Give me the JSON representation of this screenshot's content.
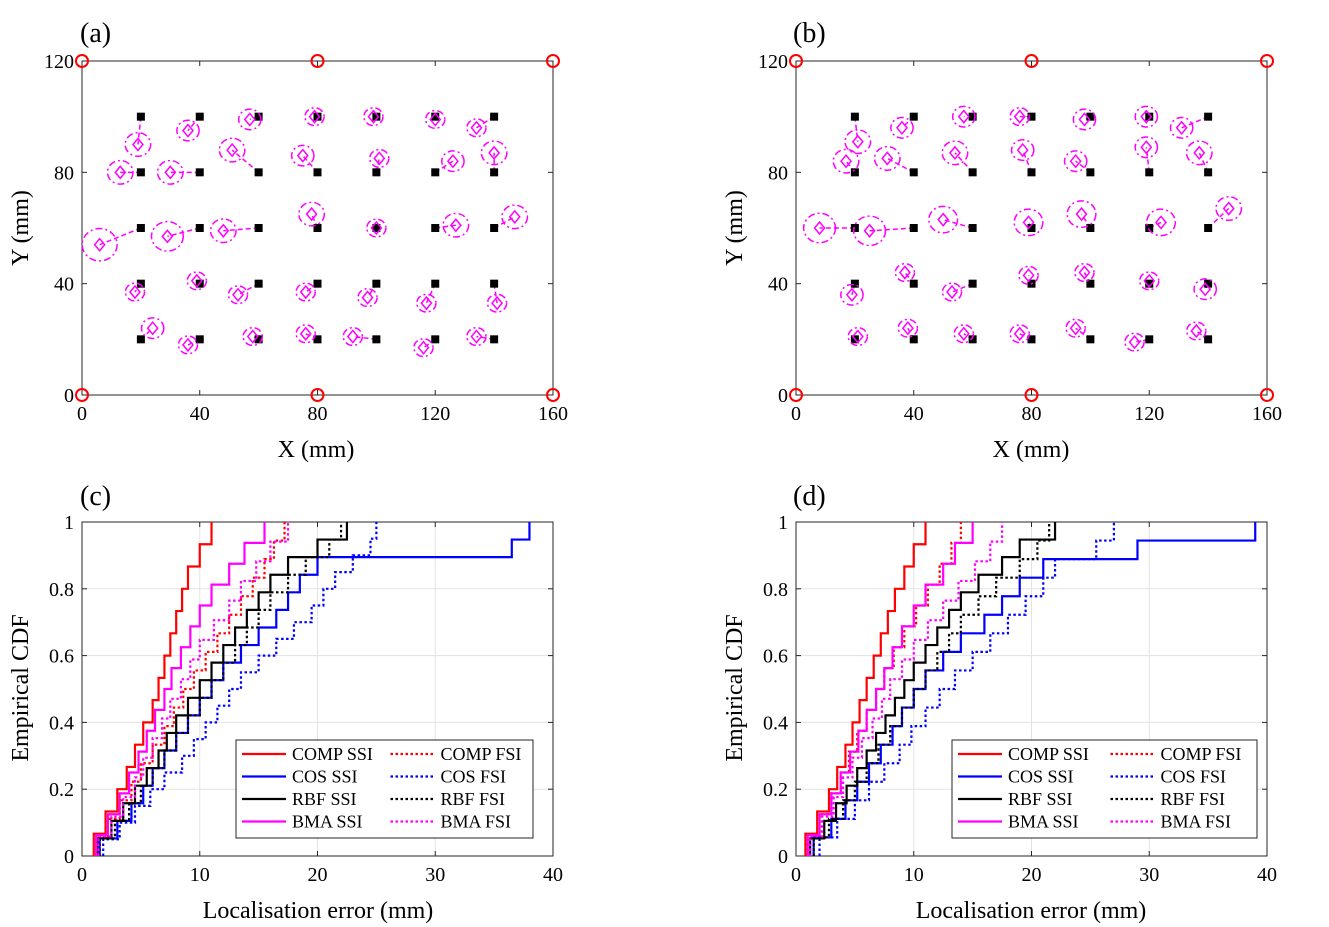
{
  "colors": {
    "COMP": "#ff0000",
    "COS": "#0000ff",
    "RBF": "#000000",
    "BMA": "#ff00ff",
    "anchor": "#ff0000",
    "estimate": "#ff00ff",
    "truth": "#000000",
    "grid": "#e3e3e3"
  },
  "chart_data": [
    {
      "id": "a",
      "type": "scatter",
      "panel_label": "(a)",
      "xlabel": "X (mm)",
      "ylabel": "Y (mm)",
      "xlim": [
        0,
        160
      ],
      "ylim": [
        0,
        120
      ],
      "xticks": [
        0,
        40,
        80,
        120,
        160
      ],
      "yticks": [
        0,
        40,
        80,
        120
      ],
      "grid": false,
      "anchors": [
        [
          0,
          0
        ],
        [
          80,
          0
        ],
        [
          160,
          0
        ],
        [
          0,
          120
        ],
        [
          80,
          120
        ],
        [
          160,
          120
        ]
      ],
      "true_points": [
        [
          20,
          20
        ],
        [
          40,
          20
        ],
        [
          60,
          20
        ],
        [
          80,
          20
        ],
        [
          100,
          20
        ],
        [
          120,
          20
        ],
        [
          140,
          20
        ],
        [
          20,
          40
        ],
        [
          40,
          40
        ],
        [
          60,
          40
        ],
        [
          80,
          40
        ],
        [
          100,
          40
        ],
        [
          120,
          40
        ],
        [
          140,
          40
        ],
        [
          20,
          60
        ],
        [
          40,
          60
        ],
        [
          60,
          60
        ],
        [
          80,
          60
        ],
        [
          100,
          60
        ],
        [
          120,
          60
        ],
        [
          140,
          60
        ],
        [
          20,
          80
        ],
        [
          40,
          80
        ],
        [
          60,
          80
        ],
        [
          80,
          80
        ],
        [
          100,
          80
        ],
        [
          120,
          80
        ],
        [
          140,
          80
        ],
        [
          20,
          100
        ],
        [
          40,
          100
        ],
        [
          60,
          100
        ],
        [
          80,
          100
        ],
        [
          100,
          100
        ],
        [
          120,
          100
        ],
        [
          140,
          100
        ]
      ],
      "estimates": [
        [
          24,
          24
        ],
        [
          36,
          18
        ],
        [
          58,
          21
        ],
        [
          76,
          22
        ],
        [
          92,
          21
        ],
        [
          116,
          17
        ],
        [
          134,
          21
        ],
        [
          18,
          37
        ],
        [
          39,
          41
        ],
        [
          53,
          36
        ],
        [
          76,
          37
        ],
        [
          97,
          35
        ],
        [
          117,
          33
        ],
        [
          141,
          33
        ],
        [
          6,
          54
        ],
        [
          29,
          57
        ],
        [
          48,
          59
        ],
        [
          78,
          65
        ],
        [
          100,
          60
        ],
        [
          127,
          61
        ],
        [
          147,
          64
        ],
        [
          13,
          80
        ],
        [
          30,
          80
        ],
        [
          51,
          88
        ],
        [
          75,
          86
        ],
        [
          101,
          85
        ],
        [
          126,
          84
        ],
        [
          140,
          87
        ],
        [
          19,
          90
        ],
        [
          36,
          95
        ],
        [
          57,
          99
        ],
        [
          79,
          100
        ],
        [
          99,
          100
        ],
        [
          120,
          99
        ],
        [
          134,
          96
        ]
      ],
      "uncertainty_radii": [
        3.5,
        3,
        3,
        3,
        3,
        3,
        3,
        3,
        3,
        3,
        3,
        3,
        3,
        3,
        5.5,
        5,
        4,
        4,
        3,
        4,
        4,
        4,
        4,
        4,
        3.5,
        3,
        3.5,
        4,
        4,
        3.5,
        3.5,
        3,
        3,
        3,
        3
      ]
    },
    {
      "id": "b",
      "type": "scatter",
      "panel_label": "(b)",
      "xlabel": "X (mm)",
      "ylabel": "Y (mm)",
      "xlim": [
        0,
        160
      ],
      "ylim": [
        0,
        120
      ],
      "xticks": [
        0,
        40,
        80,
        120,
        160
      ],
      "yticks": [
        0,
        40,
        80,
        120
      ],
      "grid": false,
      "anchors": [
        [
          0,
          0
        ],
        [
          80,
          0
        ],
        [
          160,
          0
        ],
        [
          0,
          120
        ],
        [
          80,
          120
        ],
        [
          160,
          120
        ]
      ],
      "true_points": [
        [
          20,
          20
        ],
        [
          40,
          20
        ],
        [
          60,
          20
        ],
        [
          80,
          20
        ],
        [
          100,
          20
        ],
        [
          120,
          20
        ],
        [
          140,
          20
        ],
        [
          20,
          40
        ],
        [
          40,
          40
        ],
        [
          60,
          40
        ],
        [
          80,
          40
        ],
        [
          100,
          40
        ],
        [
          120,
          40
        ],
        [
          140,
          40
        ],
        [
          20,
          60
        ],
        [
          40,
          60
        ],
        [
          60,
          60
        ],
        [
          80,
          60
        ],
        [
          100,
          60
        ],
        [
          120,
          60
        ],
        [
          140,
          60
        ],
        [
          20,
          80
        ],
        [
          40,
          80
        ],
        [
          60,
          80
        ],
        [
          80,
          80
        ],
        [
          100,
          80
        ],
        [
          120,
          80
        ],
        [
          140,
          80
        ],
        [
          20,
          100
        ],
        [
          40,
          100
        ],
        [
          60,
          100
        ],
        [
          80,
          100
        ],
        [
          100,
          100
        ],
        [
          120,
          100
        ],
        [
          140,
          100
        ]
      ],
      "estimates": [
        [
          21,
          21
        ],
        [
          38,
          24
        ],
        [
          57,
          22
        ],
        [
          76,
          22
        ],
        [
          95,
          24
        ],
        [
          115,
          19
        ],
        [
          136,
          23
        ],
        [
          19,
          36
        ],
        [
          37,
          44
        ],
        [
          53,
          37
        ],
        [
          79,
          43
        ],
        [
          98,
          44
        ],
        [
          120,
          41
        ],
        [
          139,
          38
        ],
        [
          8,
          60
        ],
        [
          25,
          59
        ],
        [
          50,
          63
        ],
        [
          79,
          62
        ],
        [
          97,
          65
        ],
        [
          124,
          62
        ],
        [
          147,
          67
        ],
        [
          17,
          84
        ],
        [
          31,
          85
        ],
        [
          54,
          87
        ],
        [
          77,
          88
        ],
        [
          95,
          84
        ],
        [
          119,
          89
        ],
        [
          137,
          87
        ],
        [
          21,
          91
        ],
        [
          36,
          96
        ],
        [
          57,
          100
        ],
        [
          76,
          100
        ],
        [
          98,
          99
        ],
        [
          119,
          100
        ],
        [
          131,
          96
        ]
      ],
      "uncertainty_radii": [
        3,
        3,
        3,
        3,
        3,
        3,
        3,
        3.5,
        3,
        3,
        3,
        3,
        3,
        3.5,
        5,
        5,
        4.5,
        4.5,
        4.5,
        4.5,
        4,
        4,
        4,
        4,
        3.5,
        3.5,
        3.5,
        4,
        4,
        3.5,
        3.5,
        3,
        3.5,
        3.5,
        3.5
      ]
    },
    {
      "id": "c",
      "type": "line",
      "panel_label": "(c)",
      "xlabel": "Localisation error (mm)",
      "ylabel": "Empirical CDF",
      "xlim": [
        0,
        40
      ],
      "ylim": [
        0,
        1
      ],
      "xticks": [
        0,
        10,
        20,
        30,
        40
      ],
      "yticks": [
        0,
        0.2,
        0.4,
        0.6,
        0.8,
        1
      ],
      "grid": true,
      "legend_location": "bottom-right",
      "series": [
        {
          "name": "COMP SSI",
          "method": "COMP",
          "style": "solid",
          "x": [
            1.0,
            2.0,
            3.0,
            3.8,
            4.5,
            5.2,
            6.0,
            6.5,
            7.0,
            7.5,
            8.0,
            8.5,
            9.0,
            10.0,
            11.0
          ]
        },
        {
          "name": "COMP FSI",
          "method": "COMP",
          "style": "dotted",
          "x": [
            1.2,
            2.2,
            3.2,
            4.2,
            5.0,
            6.0,
            7.0,
            7.8,
            8.6,
            9.5,
            10.5,
            11.5,
            12.5,
            13.5,
            14.5,
            15.5,
            16.3,
            17.2
          ]
        },
        {
          "name": "COS SSI",
          "method": "COS",
          "style": "solid",
          "x": [
            1.5,
            3.0,
            4.2,
            5.2,
            6.0,
            7.0,
            8.0,
            9.0,
            10.0,
            11.0,
            12.0,
            13.5,
            15.0,
            16.5,
            17.5,
            18.5,
            20.0,
            36.5,
            38.0
          ]
        },
        {
          "name": "COS FSI",
          "method": "COS",
          "style": "dotted",
          "x": [
            1.8,
            3.2,
            4.5,
            5.8,
            7.0,
            8.5,
            9.5,
            10.5,
            11.5,
            12.5,
            13.5,
            15.0,
            16.5,
            18.0,
            19.5,
            20.5,
            21.5,
            23.0,
            24.5,
            25.0
          ]
        },
        {
          "name": "RBF SSI",
          "method": "RBF",
          "style": "solid",
          "x": [
            1.3,
            2.5,
            3.5,
            4.5,
            5.5,
            6.5,
            7.2,
            8.0,
            9.0,
            10.0,
            11.0,
            12.0,
            13.0,
            14.0,
            15.0,
            16.0,
            17.5,
            20.0,
            22.5
          ]
        },
        {
          "name": "RBF FSI",
          "method": "RBF",
          "style": "dotted",
          "x": [
            1.5,
            2.8,
            4.0,
            5.0,
            6.0,
            7.0,
            8.0,
            9.0,
            10.0,
            11.0,
            12.0,
            13.0,
            14.0,
            15.0,
            16.0,
            17.5,
            19.0,
            21.0,
            22.0
          ]
        },
        {
          "name": "BMA SSI",
          "method": "BMA",
          "style": "solid",
          "x": [
            1.2,
            2.2,
            3.2,
            4.0,
            4.8,
            5.5,
            6.2,
            7.0,
            7.6,
            8.4,
            9.2,
            10.0,
            11.0,
            12.5,
            13.8,
            15.5
          ]
        },
        {
          "name": "BMA FSI",
          "method": "BMA",
          "style": "dotted",
          "x": [
            1.4,
            2.5,
            3.5,
            4.5,
            5.2,
            6.0,
            6.8,
            7.5,
            8.4,
            9.2,
            10.0,
            11.2,
            12.5,
            13.5,
            14.8,
            16.0,
            17.5
          ]
        }
      ]
    },
    {
      "id": "d",
      "type": "line",
      "panel_label": "(d)",
      "xlabel": "Localisation error (mm)",
      "ylabel": "Empirical CDF",
      "xlim": [
        0,
        40
      ],
      "ylim": [
        0,
        1
      ],
      "xticks": [
        0,
        10,
        20,
        30,
        40
      ],
      "yticks": [
        0,
        0.2,
        0.4,
        0.6,
        0.8,
        1
      ],
      "grid": true,
      "legend_location": "bottom-right",
      "series": [
        {
          "name": "COMP SSI",
          "method": "COMP",
          "style": "solid",
          "x": [
            0.8,
            1.8,
            2.8,
            3.5,
            4.2,
            4.8,
            5.4,
            6.0,
            6.6,
            7.2,
            7.8,
            8.4,
            9.2,
            10.0,
            11.0
          ]
        },
        {
          "name": "COMP FSI",
          "method": "COMP",
          "style": "dotted",
          "x": [
            1.0,
            2.0,
            3.0,
            3.8,
            4.5,
            5.2,
            6.0,
            6.8,
            7.5,
            8.3,
            9.2,
            10.2,
            11.2,
            12.2,
            13.2,
            14.0
          ]
        },
        {
          "name": "COS SSI",
          "method": "COS",
          "style": "solid",
          "x": [
            1.5,
            3.0,
            4.2,
            5.2,
            6.2,
            7.2,
            8.2,
            9.0,
            10.0,
            11.0,
            12.5,
            14.0,
            16.0,
            17.5,
            19.0,
            21.0,
            29.0,
            39.0
          ]
        },
        {
          "name": "COS FSI",
          "method": "COS",
          "style": "dotted",
          "x": [
            2.0,
            3.5,
            5.0,
            6.2,
            7.5,
            8.8,
            9.8,
            11.0,
            12.2,
            13.5,
            15.0,
            16.5,
            18.0,
            19.5,
            21.0,
            22.0,
            25.5,
            27.0
          ]
        },
        {
          "name": "RBF SSI",
          "method": "RBF",
          "style": "solid",
          "x": [
            1.2,
            2.4,
            3.4,
            4.3,
            5.2,
            6.0,
            6.8,
            7.6,
            8.4,
            9.2,
            10.0,
            11.0,
            12.0,
            13.0,
            14.0,
            15.5,
            17.5,
            19.0,
            22.0
          ]
        },
        {
          "name": "RBF FSI",
          "method": "RBF",
          "style": "dotted",
          "x": [
            1.5,
            2.8,
            4.0,
            5.0,
            6.0,
            7.0,
            8.0,
            9.0,
            10.0,
            11.0,
            12.0,
            13.0,
            14.0,
            15.5,
            17.0,
            19.0,
            20.5,
            21.5
          ]
        },
        {
          "name": "BMA SSI",
          "method": "BMA",
          "style": "solid",
          "x": [
            1.0,
            2.0,
            3.0,
            3.8,
            4.6,
            5.3,
            6.0,
            6.8,
            7.5,
            8.2,
            9.0,
            10.0,
            11.0,
            12.5,
            13.5,
            15.0
          ]
        },
        {
          "name": "BMA FSI",
          "method": "BMA",
          "style": "dotted",
          "x": [
            1.2,
            2.2,
            3.2,
            4.0,
            4.8,
            5.6,
            6.5,
            7.3,
            8.0,
            9.0,
            10.0,
            11.2,
            12.5,
            13.8,
            15.2,
            16.5,
            17.5
          ]
        }
      ]
    }
  ]
}
